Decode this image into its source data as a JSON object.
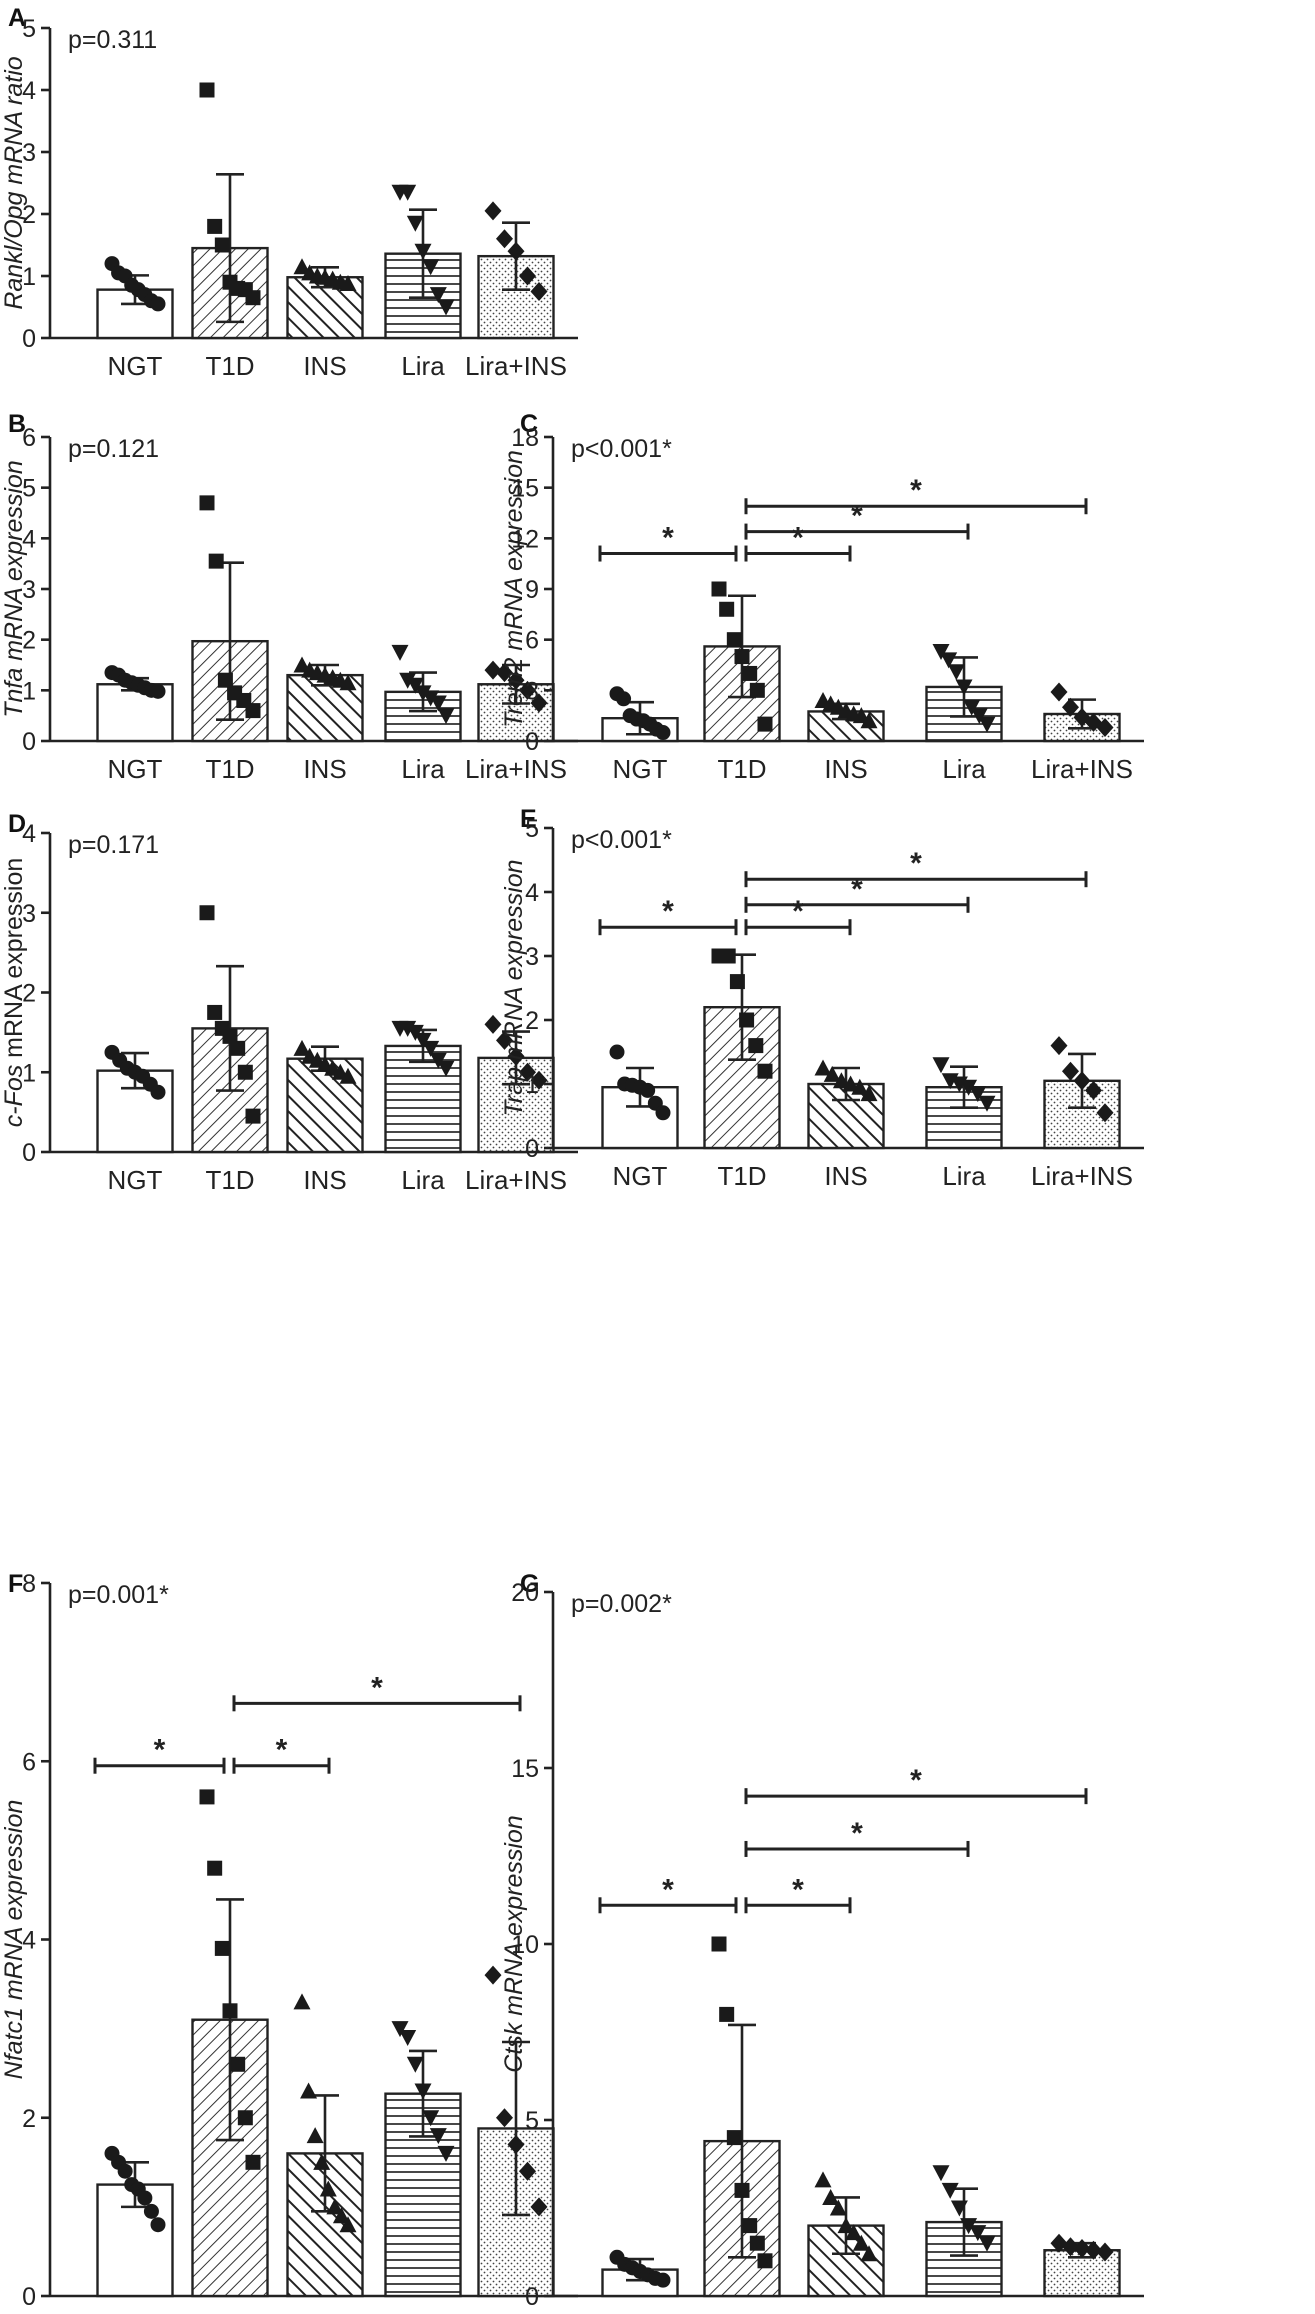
{
  "chart_data": [
    {
      "panel": "A",
      "type": "bar",
      "ylabel_italic": "Rankl/Opg mRNA ratio",
      "ylabel_plain": "",
      "pvalue": "p=0.311",
      "yticks": [
        "0",
        "1",
        "2",
        "3",
        "4",
        "5"
      ],
      "ylim": [
        0,
        5
      ],
      "categories": [
        "NGT",
        "T1D",
        "INS",
        "Lira",
        "Lira+INS"
      ],
      "means": [
        0.78,
        1.45,
        0.98,
        1.36,
        1.32
      ],
      "sd": [
        0.23,
        1.19,
        0.16,
        0.71,
        0.54
      ],
      "points": [
        [
          1.2,
          1.05,
          1.0,
          0.85,
          0.78,
          0.7,
          0.6,
          0.55
        ],
        [
          4.0,
          1.8,
          1.5,
          0.9,
          0.8,
          0.78,
          0.65
        ],
        [
          1.15,
          1.05,
          1.0,
          0.98,
          0.95,
          0.9,
          0.88
        ],
        [
          2.35,
          2.35,
          1.85,
          1.4,
          1.15,
          0.7,
          0.5
        ],
        [
          2.05,
          1.6,
          1.4,
          1.0,
          0.75
        ]
      ],
      "significance": []
    },
    {
      "panel": "B",
      "type": "bar",
      "ylabel_italic": "Tnfa mRNA expression",
      "ylabel_plain": "",
      "pvalue": "p=0.121",
      "yticks": [
        "0",
        "1",
        "2",
        "3",
        "4",
        "5",
        "6"
      ],
      "ylim": [
        0,
        6
      ],
      "categories": [
        "NGT",
        "T1D",
        "INS",
        "Lira",
        "Lira+INS"
      ],
      "means": [
        1.12,
        1.97,
        1.3,
        0.97,
        1.12
      ],
      "sd": [
        0.12,
        1.55,
        0.2,
        0.38,
        0.38
      ],
      "points": [
        [
          1.35,
          1.3,
          1.2,
          1.15,
          1.1,
          1.05,
          1.0,
          0.98
        ],
        [
          4.7,
          3.55,
          1.2,
          0.95,
          0.8,
          0.6
        ],
        [
          1.5,
          1.4,
          1.35,
          1.3,
          1.25,
          1.2,
          1.15
        ],
        [
          1.75,
          1.2,
          1.1,
          0.95,
          0.85,
          0.75,
          0.5
        ],
        [
          1.4,
          1.35,
          1.2,
          1.0,
          0.75
        ]
      ],
      "significance": []
    },
    {
      "panel": "C",
      "type": "bar",
      "ylabel_italic": "Trem2 mRNA expression",
      "ylabel_plain": "",
      "pvalue": "p<0.001*",
      "yticks": [
        "0",
        "3",
        "6",
        "9",
        "12",
        "15",
        "18"
      ],
      "ylim": [
        0,
        18
      ],
      "categories": [
        "NGT",
        "T1D",
        "INS",
        "Lira",
        "Lira+INS"
      ],
      "means": [
        1.35,
        5.6,
        1.75,
        3.2,
        1.6
      ],
      "sd": [
        0.95,
        3.0,
        0.45,
        1.75,
        0.85
      ],
      "points": [
        [
          2.8,
          2.5,
          1.5,
          1.3,
          1.2,
          1.0,
          0.7,
          0.5
        ],
        [
          9.0,
          7.8,
          6.0,
          5.0,
          4.0,
          3.0,
          1.0
        ],
        [
          2.4,
          2.2,
          2.0,
          1.8,
          1.6,
          1.5,
          1.2
        ],
        [
          5.3,
          4.8,
          4.1,
          3.2,
          2.0,
          1.5,
          1.0
        ],
        [
          2.9,
          2.0,
          1.4,
          1.1,
          0.8
        ]
      ],
      "significance": [
        {
          "from": 0,
          "to": 1,
          "y": 11.1,
          "label": "*"
        },
        {
          "from": 1,
          "to": 2,
          "y": 11.1,
          "label": "*"
        },
        {
          "from": 1,
          "to": 3,
          "y": 12.4,
          "label": "*"
        },
        {
          "from": 1,
          "to": 4,
          "y": 13.9,
          "label": "*"
        }
      ]
    },
    {
      "panel": "D",
      "type": "bar",
      "ylabel_italic": "c-Fos",
      "ylabel_plain": " mRNA expression",
      "pvalue": "p=0.171",
      "yticks": [
        "0",
        "1",
        "2",
        "3",
        "4"
      ],
      "ylim": [
        0,
        4
      ],
      "categories": [
        "NGT",
        "T1D",
        "INS",
        "Lira",
        "Lira+INS"
      ],
      "means": [
        1.02,
        1.55,
        1.17,
        1.33,
        1.18
      ],
      "sd": [
        0.22,
        0.78,
        0.15,
        0.2,
        0.33
      ],
      "points": [
        [
          1.25,
          1.15,
          1.05,
          1.0,
          0.95,
          0.85,
          0.75
        ],
        [
          3.0,
          1.75,
          1.55,
          1.45,
          1.3,
          1.0,
          0.45
        ],
        [
          1.3,
          1.2,
          1.15,
          1.1,
          1.05,
          1.0,
          0.95
        ],
        [
          1.55,
          1.55,
          1.5,
          1.4,
          1.3,
          1.15,
          1.05
        ],
        [
          1.6,
          1.4,
          1.2,
          1.0,
          0.9
        ]
      ],
      "significance": []
    },
    {
      "panel": "E",
      "type": "bar",
      "ylabel_italic": "Trap mRNA expression",
      "ylabel_plain": "",
      "pvalue": "p<0.001*",
      "yticks": [
        "0",
        "1",
        "2",
        "3",
        "4",
        "5"
      ],
      "ylim": [
        0,
        5
      ],
      "categories": [
        "NGT",
        "T1D",
        "INS",
        "Lira",
        "Lira+INS"
      ],
      "means": [
        0.95,
        2.2,
        1.0,
        0.95,
        1.05
      ],
      "sd": [
        0.3,
        0.82,
        0.25,
        0.32,
        0.42
      ],
      "points": [
        [
          1.5,
          1.0,
          0.98,
          0.95,
          0.9,
          0.7,
          0.55
        ],
        [
          3.0,
          3.0,
          2.6,
          2.0,
          1.6,
          1.2
        ],
        [
          1.25,
          1.15,
          1.05,
          1.0,
          0.95,
          0.85
        ],
        [
          1.3,
          1.05,
          1.0,
          0.95,
          0.85,
          0.7
        ],
        [
          1.6,
          1.2,
          1.05,
          0.9,
          0.55
        ]
      ],
      "significance": [
        {
          "from": 0,
          "to": 1,
          "y": 3.45,
          "label": "*"
        },
        {
          "from": 1,
          "to": 2,
          "y": 3.45,
          "label": "*"
        },
        {
          "from": 1,
          "to": 3,
          "y": 3.8,
          "label": "*"
        },
        {
          "from": 1,
          "to": 4,
          "y": 4.2,
          "label": "*"
        }
      ]
    },
    {
      "panel": "F",
      "type": "bar",
      "ylabel_italic": "Nfatc1 mRNA expression",
      "ylabel_plain": "",
      "pvalue": "p=0.001*",
      "yticks": [
        "0",
        "2",
        "4",
        "6",
        "8"
      ],
      "ylim": [
        0,
        8
      ],
      "categories": [
        "NGT",
        "T1D",
        "INS",
        "Lira",
        "Lira+INS"
      ],
      "means": [
        1.25,
        3.1,
        1.6,
        2.27,
        1.88
      ],
      "sd": [
        0.25,
        1.35,
        0.65,
        0.48,
        0.97
      ],
      "points": [
        [
          1.6,
          1.5,
          1.4,
          1.25,
          1.2,
          1.1,
          0.95,
          0.8
        ],
        [
          5.6,
          4.8,
          3.9,
          3.2,
          2.6,
          2.0,
          1.5
        ],
        [
          3.3,
          2.3,
          1.8,
          1.5,
          1.2,
          1.0,
          0.9,
          0.8
        ],
        [
          3.0,
          2.9,
          2.6,
          2.3,
          2.0,
          1.8,
          1.6
        ],
        [
          3.6,
          2.0,
          1.7,
          1.4,
          1.0
        ]
      ],
      "significance": [
        {
          "from": 0,
          "to": 1,
          "y": 5.95,
          "label": "*"
        },
        {
          "from": 1,
          "to": 2,
          "y": 5.95,
          "label": "*"
        },
        {
          "from": 1,
          "to": 4,
          "y": 6.65,
          "label": "*"
        }
      ]
    },
    {
      "panel": "G",
      "type": "bar",
      "ylabel_italic": "Ctsk mRNA expression",
      "ylabel_plain": "",
      "pvalue": "p=0.002*",
      "yticks": [
        "0",
        "5",
        "10",
        "15",
        "20"
      ],
      "ylim": [
        0,
        20
      ],
      "categories": [
        "NGT",
        "T1D",
        "INS",
        "Lira",
        "Lira+INS"
      ],
      "means": [
        0.75,
        4.4,
        2.0,
        2.1,
        1.3
      ],
      "sd": [
        0.3,
        3.3,
        0.8,
        0.95,
        0.2
      ],
      "points": [
        [
          1.1,
          0.9,
          0.8,
          0.7,
          0.6,
          0.5,
          0.45
        ],
        [
          10.0,
          8.0,
          4.5,
          3.0,
          2.0,
          1.5,
          1.0
        ],
        [
          3.3,
          2.8,
          2.5,
          2.0,
          1.8,
          1.5,
          1.2
        ],
        [
          3.5,
          3.0,
          2.5,
          2.0,
          1.8,
          1.5
        ],
        [
          1.5,
          1.4,
          1.35,
          1.3,
          1.25
        ]
      ],
      "significance": [
        {
          "from": 0,
          "to": 1,
          "y": 11.1,
          "label": "*"
        },
        {
          "from": 1,
          "to": 2,
          "y": 11.1,
          "label": "*"
        },
        {
          "from": 1,
          "to": 3,
          "y": 12.7,
          "label": "*"
        },
        {
          "from": 1,
          "to": 4,
          "y": 14.2,
          "label": "*"
        }
      ]
    }
  ]
}
